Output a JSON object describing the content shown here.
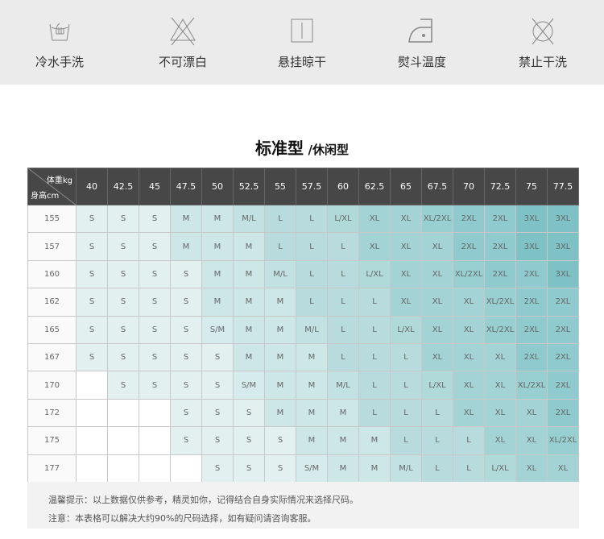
{
  "care": [
    {
      "icon": "hand-wash-icon",
      "label": "冷水手洗"
    },
    {
      "icon": "no-bleach-icon",
      "label": "不可漂白"
    },
    {
      "icon": "hang-dry-icon",
      "label": "悬挂晾干"
    },
    {
      "icon": "iron-icon",
      "label": "熨斗温度"
    },
    {
      "icon": "no-dry-clean-icon",
      "label": "禁止干洗"
    }
  ],
  "title": {
    "main": "标准型",
    "sub": "/休闲型"
  },
  "table": {
    "weight_label": "体重kg",
    "height_label": "身高cm",
    "weights": [
      "40",
      "42.5",
      "45",
      "47.5",
      "50",
      "52.5",
      "55",
      "57.5",
      "60",
      "62.5",
      "65",
      "67.5",
      "70",
      "72.5",
      "75",
      "77.5"
    ],
    "rows": [
      {
        "h": "155",
        "s": [
          "S",
          "S",
          "S",
          "M",
          "M",
          "M/L",
          "L",
          "L",
          "L/XL",
          "XL",
          "XL",
          "XL/2XL",
          "2XL",
          "2XL",
          "3XL",
          "3XL"
        ]
      },
      {
        "h": "157",
        "s": [
          "S",
          "S",
          "S",
          "M",
          "M",
          "M",
          "L",
          "L",
          "L",
          "XL",
          "XL",
          "XL",
          "2XL",
          "2XL",
          "3XL",
          "3XL"
        ]
      },
      {
        "h": "160",
        "s": [
          "S",
          "S",
          "S",
          "S",
          "M",
          "M",
          "M/L",
          "L",
          "L",
          "L/XL",
          "XL",
          "XL",
          "XL/2XL",
          "2XL",
          "2XL",
          "3XL"
        ]
      },
      {
        "h": "162",
        "s": [
          "S",
          "S",
          "S",
          "S",
          "M",
          "M",
          "M",
          "L",
          "L",
          "L",
          "XL",
          "XL",
          "XL",
          "XL/2XL",
          "2XL",
          "2XL"
        ]
      },
      {
        "h": "165",
        "s": [
          "S",
          "S",
          "S",
          "S",
          "S/M",
          "M",
          "M",
          "M/L",
          "L",
          "L",
          "L/XL",
          "XL",
          "XL",
          "XL/2XL",
          "2XL",
          "2XL"
        ]
      },
      {
        "h": "167",
        "s": [
          "S",
          "S",
          "S",
          "S",
          "S",
          "M",
          "M",
          "M",
          "L",
          "L",
          "L",
          "XL",
          "XL",
          "XL",
          "2XL",
          "2XL"
        ]
      },
      {
        "h": "170",
        "s": [
          "",
          "S",
          "S",
          "S",
          "S",
          "S/M",
          "M",
          "M",
          "M/L",
          "L",
          "L",
          "L/XL",
          "XL",
          "XL",
          "XL/2XL",
          "2XL"
        ]
      },
      {
        "h": "172",
        "s": [
          "",
          "",
          "",
          "S",
          "S",
          "S",
          "M",
          "M",
          "M",
          "L",
          "L",
          "L",
          "XL",
          "XL",
          "XL",
          "2XL"
        ]
      },
      {
        "h": "175",
        "s": [
          "",
          "",
          "",
          "S",
          "S",
          "S",
          "S",
          "M",
          "M",
          "M",
          "L",
          "L",
          "L",
          "XL",
          "XL",
          "XL/2XL"
        ]
      },
      {
        "h": "177",
        "s": [
          "",
          "",
          "",
          "",
          "S",
          "S",
          "S",
          "S/M",
          "M",
          "M",
          "M/L",
          "L",
          "L",
          "L/XL",
          "XL",
          "XL"
        ]
      }
    ],
    "colors": {
      "": "#ffffff",
      "S": "#e3f0f0",
      "S/M": "#d6ebeb",
      "M": "#cde6e6",
      "M/L": "#c2e1e2",
      "L": "#b8dcdd",
      "L/XL": "#b0d9da",
      "XL": "#a4d3d5",
      "XL/2XL": "#98cfd1",
      "2XL": "#8fcace",
      "3XL": "#7ec2c6"
    }
  },
  "footer": {
    "line1": "温馨提示：以上数据仅供参考，精灵如你，记得结合自身实际情况来选择尺码。",
    "line2": "注意：本表格可以解决大约90%的尺码选择，如有疑问请咨询客服。"
  }
}
